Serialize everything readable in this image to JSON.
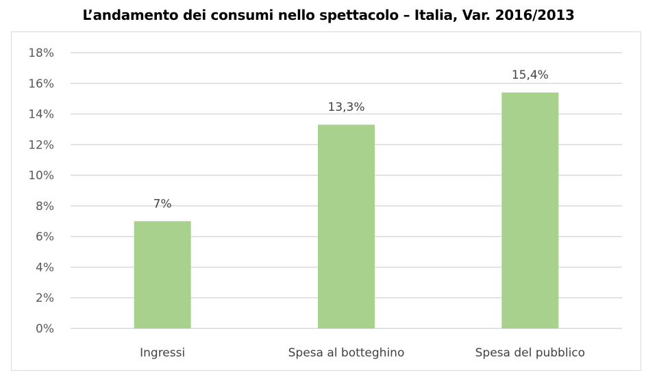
{
  "chart_data": {
    "type": "bar",
    "title": "L’andamento dei consumi nello spettacolo – Italia, Var. 2016/2013",
    "categories": [
      "Ingressi",
      "Spesa al botteghino",
      "Spesa del pubblico"
    ],
    "values": [
      7,
      13.3,
      15.4
    ],
    "data_labels": [
      "7%",
      "13,3%",
      "15,4%"
    ],
    "ylim": [
      0,
      18
    ],
    "yticks": [
      0,
      2,
      4,
      6,
      8,
      10,
      12,
      14,
      16,
      18
    ],
    "ytick_labels": [
      "0%",
      "2%",
      "4%",
      "6%",
      "8%",
      "10%",
      "12%",
      "14%",
      "16%",
      "18%"
    ],
    "xlabel": "",
    "ylabel": "",
    "grid": true,
    "legend": "none",
    "bar_color": "#a9d18e"
  }
}
